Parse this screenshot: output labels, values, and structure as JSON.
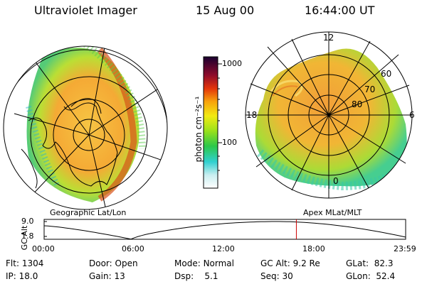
{
  "header": {
    "title": "Ultraviolet Imager",
    "date": "15 Aug 00",
    "time": "16:44:00 UT"
  },
  "colorbar": {
    "unit_label": "photon cm⁻²s⁻¹",
    "ticks": [
      "1000",
      "100"
    ]
  },
  "left_panel": {
    "caption": "Geographic Lat/Lon"
  },
  "right_panel": {
    "caption": "Apex MLat/MLT",
    "mlt_labels": {
      "top": "12",
      "left": "18",
      "right": "6",
      "bottom": "0"
    },
    "lat_labels": [
      "60",
      "70",
      "80"
    ]
  },
  "timeline": {
    "ylabel": "GC Alt",
    "y_ticks": [
      "9.0",
      "1.8"
    ],
    "x_ticks": [
      "00:00",
      "06:00",
      "12:00",
      "18:00",
      "23:59"
    ],
    "marker_time_hours": 16.733
  },
  "info": {
    "flt": {
      "label": "Flt:",
      "value": "1304"
    },
    "ip": {
      "label": "IP:",
      "value": "18.0"
    },
    "door": {
      "label": "Door:",
      "value": "Open"
    },
    "gain": {
      "label": "Gain:",
      "value": "13"
    },
    "mode": {
      "label": "Mode:",
      "value": "Normal"
    },
    "dsp": {
      "label": "Dsp:",
      "value": "5.1"
    },
    "gcalt": {
      "label": "GC Alt:",
      "value": "9.2 Re"
    },
    "seq": {
      "label": "Seq:",
      "value": "30"
    },
    "glat": {
      "label": "GLat:",
      "value": "82.3"
    },
    "glon": {
      "label": "GLon:",
      "value": "52.4"
    }
  },
  "colors": {
    "orbit_marker": "#cc0000"
  }
}
